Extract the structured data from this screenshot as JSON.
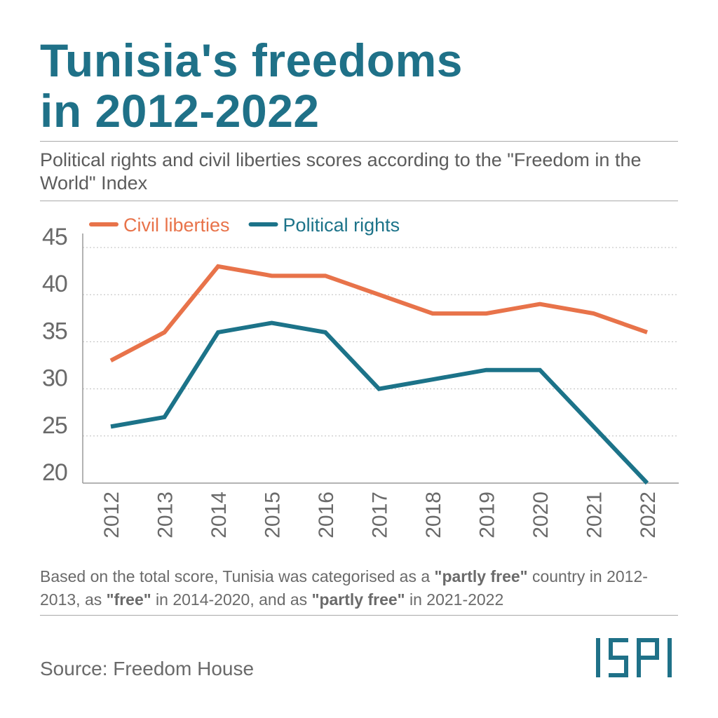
{
  "header": {
    "title_line1": "Tunisia's freedoms",
    "title_line2": "in 2012-2022",
    "subtitle": "Political rights and civil liberties scores according to the \"Freedom in the World\" Index"
  },
  "note": {
    "part1": "Based on the total score, Tunisia was categorised as a ",
    "bold1": "\"partly free\"",
    "part2": " country in 2012-2013, as ",
    "bold2": "\"free\"",
    "part3": " in 2014-2020, and as ",
    "bold3": "\"partly free\"",
    "part4": " in 2021-2022"
  },
  "source": "Source: Freedom House",
  "logo": {
    "text": "ISPI",
    "color": "#1f7188"
  },
  "colors": {
    "civil_liberties": "#e8734a",
    "political_rights": "#1c7389",
    "grid": "#bdbdbd",
    "tick_text": "#6a6a6a"
  },
  "chart_data": {
    "type": "line",
    "title": "Tunisia's freedoms in 2012-2022",
    "xlabel": "",
    "ylabel": "",
    "x": [
      "2012",
      "2013",
      "2014",
      "2015",
      "2016",
      "2017",
      "2018",
      "2019",
      "2020",
      "2021",
      "2022"
    ],
    "ylim": [
      20,
      45
    ],
    "yticks": [
      20,
      25,
      30,
      35,
      40,
      45
    ],
    "grid": true,
    "legend_position": "top-left",
    "series": [
      {
        "name": "Civil liberties",
        "color": "#e8734a",
        "values": [
          33,
          36,
          43,
          42,
          42,
          40,
          38,
          38,
          39,
          38,
          36
        ]
      },
      {
        "name": "Political rights",
        "color": "#1c7389",
        "values": [
          26,
          27,
          36,
          37,
          36,
          30,
          31,
          32,
          32,
          26,
          20
        ]
      }
    ]
  }
}
